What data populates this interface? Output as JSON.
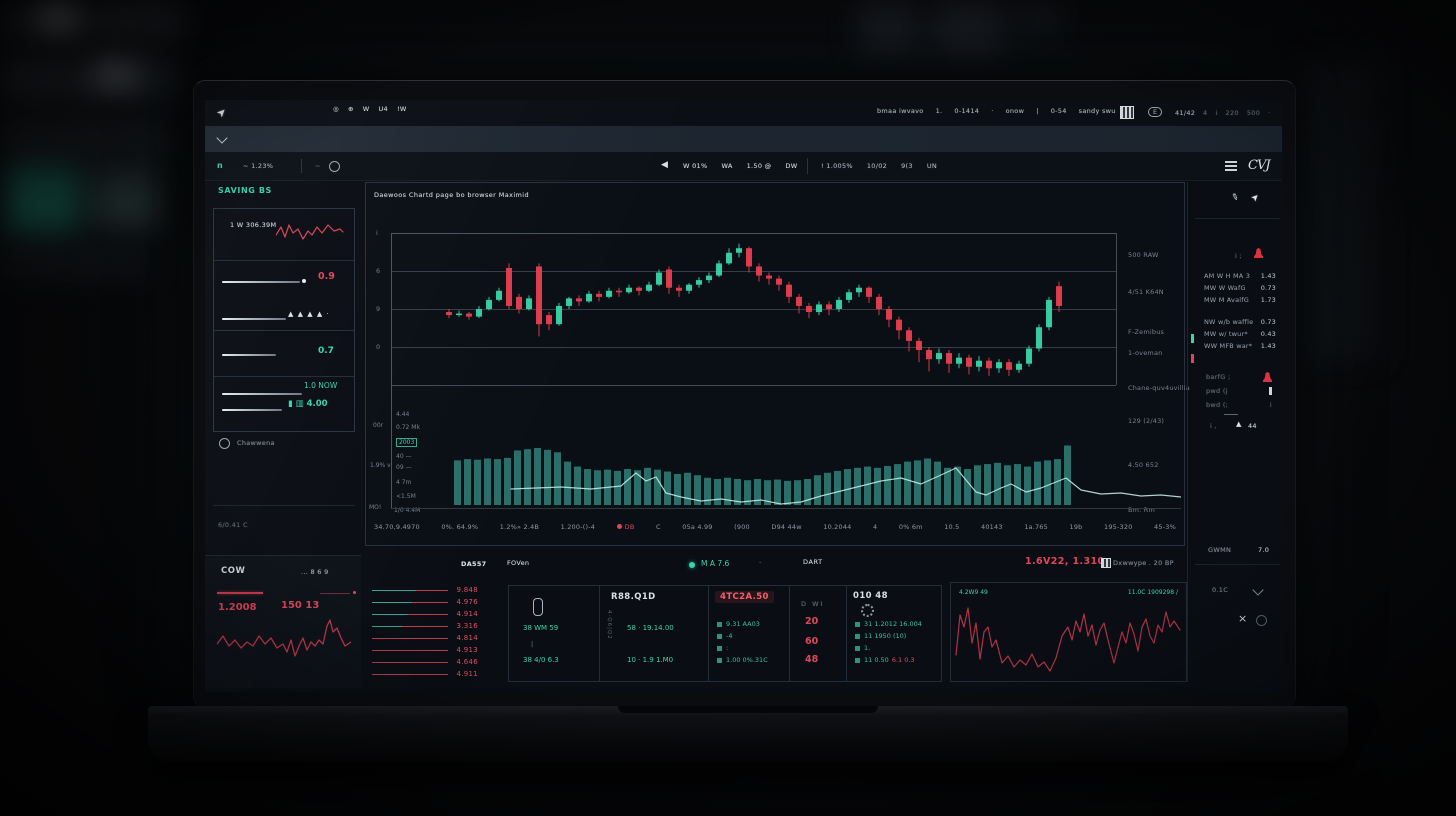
{
  "topbar": {
    "glyphs": [
      "◎",
      "⊕",
      "W",
      "U4",
      "!W"
    ],
    "right_items": [
      "bmaa iwvavo",
      "1.",
      "0-1414",
      "·",
      "onow",
      "|",
      "0-54",
      "sandy swu"
    ],
    "pill": "E",
    "counter": "41/42",
    "far_right": [
      "4",
      "i",
      "220",
      "500",
      "·"
    ]
  },
  "toolbar": {
    "symbol": "n",
    "change": "~ 1.23%",
    "circle_hint": "~",
    "mid_items": [
      "W 01%",
      "WA",
      "1.50 @",
      "DW"
    ],
    "mid_items2": [
      "! 1.005%",
      "10/02",
      "9(3",
      "UN"
    ],
    "logo": "CVJ"
  },
  "sidebar": {
    "header": "SAVING BS",
    "card": {
      "row1_label": "1 W 306.39M",
      "row2_value": "0.9",
      "row3_glyphs": "▲ ▲ ▲ ▲ ·",
      "row4_value": "0.7",
      "row5_label": "1.0 NOW",
      "row5_value": "▮ ▥ 4.00"
    },
    "link_label": "Chawwena",
    "footnote": "6/0.41 C",
    "cow": {
      "title": "COW",
      "right": "... 8 6 9",
      "value1": "1.2008",
      "value2": "150 13"
    }
  },
  "main_chart": {
    "title": "Daewoos Chartd page bo browser Maximid",
    "y_ticks": [
      "i",
      "6",
      "9",
      "0"
    ],
    "side_labels": [
      "500 RAW",
      "4/51 K64N",
      "F-Zemibus",
      "1-oveman",
      "Chane-quv4uvillia",
      "129 (2/43)",
      "4.50 652",
      "Bm. Rm"
    ],
    "vol_labels": [
      "4.44",
      "0.72 Mk",
      "2003",
      "40 —",
      "09 —",
      "4 7m",
      "<1.5M"
    ],
    "axis_notes": {
      "a": "00r",
      "b": "1.9% v",
      "c": "MO!",
      "d": "1/0 4.4M"
    },
    "status_row": [
      "34.70,9.4970",
      "0%. 64.9%",
      "1.2%» 2.4B",
      "1.200-()-4",
      "DB",
      "C",
      "05a 4.99",
      "(900",
      "D94 44w",
      "10.2044",
      "4",
      "0% 6m",
      "10.5",
      "40143",
      "1a.765",
      "19b",
      "195-320",
      "45-3%"
    ]
  },
  "right_panel": {
    "header_hint": "i ;",
    "rows": [
      [
        "AM W H MA 3",
        "1.43"
      ],
      [
        "MW W WafG",
        "0.73"
      ],
      [
        "MW M AvalfG",
        "1.73"
      ],
      [
        "NW w/b waffle",
        "0.73"
      ],
      [
        "MW w/ twur*",
        "0.43"
      ],
      [
        "WW MFB war*",
        "1.43"
      ]
    ],
    "alerts": [
      {
        "label": "barfG ;",
        "icon": "bell"
      },
      {
        "label": "pwd (j",
        "icon": "bar"
      },
      {
        "label": "bwd (;",
        "icon": "dot"
      }
    ],
    "footer": {
      "prefix": "i ,",
      "arrow": "▲",
      "value": "44"
    },
    "bottom": {
      "l1": "GWMN",
      "v1": "7.0",
      "l2": "0.1C",
      "l3": "×"
    }
  },
  "bottom": {
    "bar": {
      "l1": "DA557",
      "l2": "FOVen",
      "ticker": "M A 7.6",
      "dash": "-",
      "l3": "DART",
      "price": "1.6V22, 1.310",
      "right": "Dxwwype . 20 BP"
    },
    "ladder": [
      {
        "teal": 44,
        "value": "9.848"
      },
      {
        "teal": 40,
        "value": "4.976"
      },
      {
        "teal": 36,
        "value": "4.914"
      },
      {
        "teal": 30,
        "value": "3.316"
      },
      {
        "teal": 0,
        "value": "4.814"
      },
      {
        "teal": 0,
        "value": "4.913"
      },
      {
        "teal": 0,
        "value": "4.646"
      },
      {
        "teal": 0,
        "value": "4.911"
      }
    ],
    "cellA": {
      "rows": [
        "38 WM 59",
        "38 4/0 6.3"
      ],
      "pipe": "|"
    },
    "cellB": {
      "title": "R88.Q1D",
      "col": "4·Q6|Q2",
      "rows": [
        "58 · 19.14.00",
        "10 · 1.9 1.M0"
      ]
    },
    "cellC": {
      "badge": "4TC2A.50",
      "rows": [
        "9.31 AA03",
        "-4",
        ":",
        "1.00 0%.31C"
      ]
    },
    "cellD": {
      "h": "D WI",
      "values": [
        "20",
        "60",
        "48"
      ]
    },
    "cellE": {
      "title": "010 48",
      "rows": [
        {
          "t": "31 1.2012 16.004"
        },
        {
          "t": "11 1950 (10)"
        },
        {
          "t": "1."
        },
        {
          "t": "11 0.50",
          "r": "6.1 0.3"
        }
      ]
    },
    "chart": {
      "tl": "4.2W9 49",
      "tr": "11.0C 1909298 /"
    }
  },
  "colors": {
    "teal": "#2fd6ae",
    "red": "#e8445a",
    "up": "#2fd6a4",
    "down": "#ee3d4e",
    "vol": "#2c7e77",
    "vol_line": "#bfe9e0"
  },
  "chart_data": {
    "type": "candlestick+volume",
    "candles_oclh_pct": [
      [
        48,
        46,
        44,
        50
      ],
      [
        46,
        47,
        45,
        49
      ],
      [
        47,
        45,
        43,
        48
      ],
      [
        45,
        50,
        44,
        52
      ],
      [
        50,
        56,
        49,
        58
      ],
      [
        56,
        62,
        55,
        64
      ],
      [
        77,
        52,
        50,
        80
      ],
      [
        58,
        50,
        47,
        60
      ],
      [
        50,
        57,
        49,
        59
      ],
      [
        78,
        40,
        32,
        80
      ],
      [
        46,
        40,
        36,
        48
      ],
      [
        40,
        52,
        39,
        54
      ],
      [
        52,
        57,
        50,
        58
      ],
      [
        57,
        55,
        52,
        59
      ],
      [
        55,
        60,
        54,
        62
      ],
      [
        60,
        58,
        55,
        62
      ],
      [
        58,
        62,
        57,
        64
      ],
      [
        62,
        61,
        58,
        64
      ],
      [
        61,
        64,
        60,
        66
      ],
      [
        64,
        62,
        59,
        65
      ],
      [
        62,
        66,
        61,
        68
      ],
      [
        66,
        74,
        65,
        76
      ],
      [
        76,
        64,
        60,
        78
      ],
      [
        64,
        62,
        58,
        66
      ],
      [
        62,
        66,
        60,
        67
      ],
      [
        66,
        69,
        64,
        71
      ],
      [
        69,
        72,
        67,
        74
      ],
      [
        72,
        80,
        71,
        82
      ],
      [
        80,
        87,
        79,
        90
      ],
      [
        87,
        90,
        84,
        93
      ],
      [
        90,
        78,
        74,
        91
      ],
      [
        78,
        72,
        68,
        80
      ],
      [
        72,
        70,
        66,
        74
      ],
      [
        70,
        66,
        62,
        72
      ],
      [
        66,
        58,
        54,
        68
      ],
      [
        58,
        52,
        47,
        60
      ],
      [
        52,
        48,
        44,
        54
      ],
      [
        48,
        53,
        46,
        55
      ],
      [
        53,
        50,
        46,
        55
      ],
      [
        50,
        56,
        48,
        58
      ],
      [
        56,
        61,
        54,
        63
      ],
      [
        61,
        64,
        58,
        66
      ],
      [
        64,
        58,
        54,
        65
      ],
      [
        58,
        50,
        46,
        60
      ],
      [
        50,
        43,
        38,
        52
      ],
      [
        43,
        36,
        30,
        45
      ],
      [
        36,
        29,
        22,
        38
      ],
      [
        29,
        23,
        15,
        31
      ],
      [
        23,
        17,
        9,
        25
      ],
      [
        17,
        21,
        14,
        24
      ],
      [
        21,
        14,
        8,
        23
      ],
      [
        14,
        18,
        11,
        21
      ],
      [
        18,
        12,
        7,
        20
      ],
      [
        12,
        16,
        9,
        19
      ],
      [
        16,
        11,
        6,
        18
      ],
      [
        11,
        15,
        8,
        17
      ],
      [
        15,
        10,
        6,
        17
      ],
      [
        10,
        14,
        8,
        16
      ],
      [
        14,
        24,
        12,
        26
      ],
      [
        24,
        38,
        22,
        40
      ],
      [
        38,
        56,
        36,
        58
      ],
      [
        65,
        52,
        48,
        68
      ]
    ],
    "volume_pct": [
      72,
      74,
      73,
      75,
      74,
      76,
      88,
      90,
      92,
      89,
      85,
      70,
      62,
      58,
      56,
      57,
      55,
      58,
      56,
      60,
      57,
      54,
      50,
      52,
      48,
      44,
      42,
      44,
      42,
      40,
      42,
      40,
      41,
      39,
      40,
      42,
      48,
      52,
      55,
      58,
      60,
      62,
      60,
      63,
      66,
      70,
      72,
      75,
      70,
      60,
      62,
      58,
      64,
      66,
      68,
      64,
      66,
      62,
      70,
      72,
      74,
      96
    ],
    "volume_line": [
      [
        120,
        48
      ],
      [
        170,
        46
      ],
      [
        200,
        48
      ],
      [
        230,
        45
      ],
      [
        245,
        32
      ],
      [
        255,
        40
      ],
      [
        265,
        36
      ],
      [
        275,
        52
      ],
      [
        290,
        56
      ],
      [
        310,
        60
      ],
      [
        330,
        58
      ],
      [
        350,
        61
      ],
      [
        370,
        59
      ],
      [
        390,
        63
      ],
      [
        410,
        61
      ],
      [
        430,
        55
      ],
      [
        450,
        50
      ],
      [
        470,
        45
      ],
      [
        490,
        40
      ],
      [
        510,
        37
      ],
      [
        530,
        43
      ],
      [
        550,
        34
      ],
      [
        565,
        27
      ],
      [
        575,
        39
      ],
      [
        585,
        51
      ],
      [
        595,
        54
      ],
      [
        610,
        47
      ],
      [
        620,
        43
      ],
      [
        635,
        51
      ],
      [
        650,
        47
      ],
      [
        665,
        41
      ],
      [
        675,
        37
      ],
      [
        690,
        49
      ],
      [
        710,
        53
      ],
      [
        730,
        52
      ],
      [
        750,
        55
      ],
      [
        770,
        54
      ],
      [
        790,
        56
      ]
    ],
    "card_sparkline": [
      [
        0,
        18
      ],
      [
        5,
        10
      ],
      [
        9,
        20
      ],
      [
        13,
        8
      ],
      [
        17,
        16
      ],
      [
        22,
        12
      ],
      [
        27,
        22
      ],
      [
        32,
        14
      ],
      [
        36,
        18
      ],
      [
        41,
        10
      ],
      [
        46,
        16
      ],
      [
        52,
        8
      ],
      [
        58,
        14
      ],
      [
        64,
        12
      ],
      [
        67,
        15
      ]
    ],
    "cow_sparkline": [
      [
        0,
        26
      ],
      [
        6,
        18
      ],
      [
        12,
        28
      ],
      [
        18,
        22
      ],
      [
        24,
        30
      ],
      [
        30,
        24
      ],
      [
        36,
        28
      ],
      [
        42,
        18
      ],
      [
        48,
        26
      ],
      [
        54,
        20
      ],
      [
        60,
        30
      ],
      [
        66,
        26
      ],
      [
        70,
        34
      ],
      [
        74,
        22
      ],
      [
        78,
        38
      ],
      [
        82,
        28
      ],
      [
        86,
        20
      ],
      [
        90,
        32
      ],
      [
        94,
        24
      ],
      [
        98,
        28
      ],
      [
        102,
        22
      ],
      [
        106,
        26
      ],
      [
        110,
        8
      ],
      [
        113,
        2
      ],
      [
        116,
        14
      ],
      [
        120,
        10
      ],
      [
        124,
        20
      ],
      [
        128,
        28
      ],
      [
        134,
        24
      ]
    ],
    "bottom_right_line": [
      [
        2,
        56
      ],
      [
        6,
        16
      ],
      [
        10,
        28
      ],
      [
        14,
        9
      ],
      [
        18,
        44
      ],
      [
        22,
        24
      ],
      [
        26,
        60
      ],
      [
        30,
        33
      ],
      [
        34,
        28
      ],
      [
        38,
        48
      ],
      [
        42,
        41
      ],
      [
        48,
        64
      ],
      [
        54,
        57
      ],
      [
        60,
        68
      ],
      [
        66,
        61
      ],
      [
        72,
        66
      ],
      [
        78,
        55
      ],
      [
        84,
        68
      ],
      [
        90,
        63
      ],
      [
        96,
        72
      ],
      [
        102,
        59
      ],
      [
        108,
        37
      ],
      [
        114,
        28
      ],
      [
        118,
        41
      ],
      [
        122,
        22
      ],
      [
        126,
        33
      ],
      [
        130,
        15
      ],
      [
        134,
        37
      ],
      [
        138,
        26
      ],
      [
        142,
        46
      ],
      [
        146,
        31
      ],
      [
        150,
        24
      ],
      [
        154,
        41
      ],
      [
        160,
        64
      ],
      [
        164,
        48
      ],
      [
        168,
        33
      ],
      [
        172,
        44
      ],
      [
        176,
        24
      ],
      [
        180,
        35
      ],
      [
        184,
        52
      ],
      [
        188,
        28
      ],
      [
        192,
        20
      ],
      [
        196,
        37
      ],
      [
        200,
        44
      ],
      [
        204,
        26
      ],
      [
        208,
        33
      ],
      [
        212,
        13
      ],
      [
        216,
        28
      ],
      [
        220,
        22
      ],
      [
        226,
        31
      ]
    ]
  }
}
